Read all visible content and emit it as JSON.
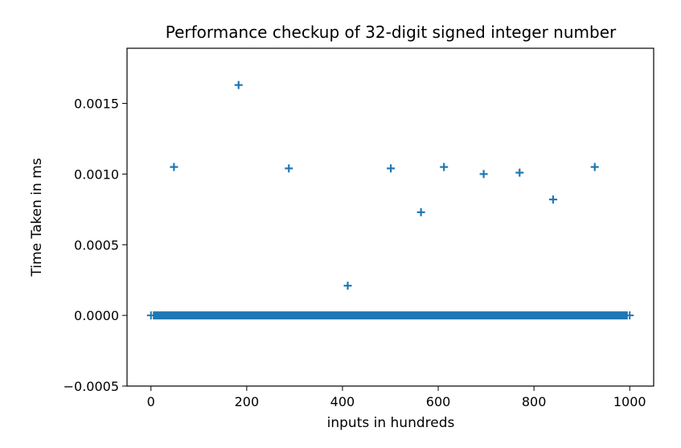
{
  "chart_data": {
    "type": "scatter",
    "title": "Performance checkup of 32-digit signed integer number",
    "xlabel": "inputs in hundreds",
    "ylabel": "Time Taken in ms",
    "xlim": [
      -50,
      1050
    ],
    "ylim": [
      -0.0005,
      0.00189
    ],
    "x_ticks": [
      0,
      200,
      400,
      600,
      800,
      1000
    ],
    "x_tick_labels": [
      "0",
      "200",
      "400",
      "600",
      "800",
      "1000"
    ],
    "y_ticks": [
      -0.0005,
      0.0,
      0.0005,
      0.001,
      0.0015
    ],
    "y_tick_labels": [
      "−0.0005",
      "0.0000",
      "0.0005",
      "0.0010",
      "0.0015"
    ],
    "marker": "+",
    "color": "#1f77b4",
    "grid": false,
    "baseline": {
      "y": 0.0,
      "x_from": 0,
      "x_to": 1000,
      "step": 1
    },
    "outliers": [
      {
        "x": 48,
        "y": 0.00105
      },
      {
        "x": 183,
        "y": 0.00163
      },
      {
        "x": 288,
        "y": 0.00104
      },
      {
        "x": 411,
        "y": 0.00021
      },
      {
        "x": 501,
        "y": 0.00104
      },
      {
        "x": 564,
        "y": 0.00073
      },
      {
        "x": 612,
        "y": 0.00105
      },
      {
        "x": 695,
        "y": 0.001
      },
      {
        "x": 770,
        "y": 0.00101
      },
      {
        "x": 840,
        "y": 0.00082
      },
      {
        "x": 927,
        "y": 0.00105
      }
    ]
  }
}
